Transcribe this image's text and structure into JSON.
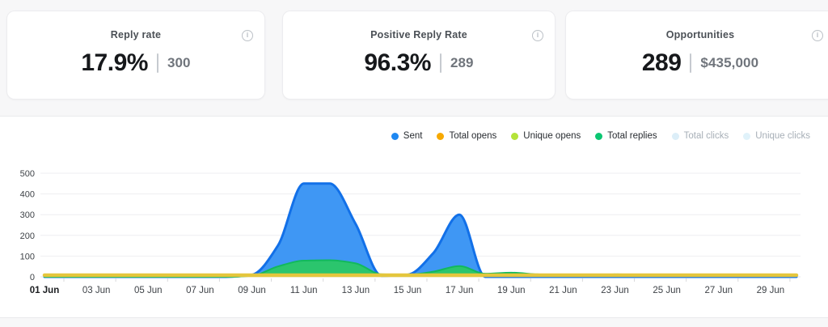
{
  "cards": [
    {
      "title": "Reply rate",
      "value": "17.9%",
      "secondary": "300",
      "info_icon": "info-circle"
    },
    {
      "title": "Positive Reply Rate",
      "value": "96.3%",
      "secondary": "289",
      "info_icon": "info-circle"
    },
    {
      "title": "Opportunities",
      "value": "289",
      "secondary": "$435,000",
      "info_icon": "info-circle"
    }
  ],
  "legend": {
    "position": "top-right",
    "items": [
      {
        "label": "Sent",
        "color": "#1e88f2",
        "active": true
      },
      {
        "label": "Total opens",
        "color": "#f7a900",
        "active": true
      },
      {
        "label": "Unique opens",
        "color": "#b4e339",
        "active": true
      },
      {
        "label": "Total replies",
        "color": "#0bc672",
        "active": true
      },
      {
        "label": "Total clicks",
        "color": "#dceef8",
        "active": false
      },
      {
        "label": "Unique clicks",
        "color": "#e0f2fa",
        "active": false
      }
    ]
  },
  "chart_data": {
    "type": "area",
    "title": "",
    "xlabel": "",
    "ylabel": "",
    "x_unit": "day of June",
    "x": [
      1,
      2,
      3,
      4,
      5,
      6,
      7,
      8,
      9,
      10,
      11,
      12,
      13,
      14,
      15,
      16,
      17,
      18,
      19,
      20,
      21,
      22,
      23,
      24,
      25,
      26,
      27,
      28,
      29,
      30
    ],
    "ylim": [
      0,
      500
    ],
    "yticks": [
      0,
      100,
      200,
      300,
      400,
      500
    ],
    "grid": true,
    "legend_position": "top-right",
    "x_ticks": [
      {
        "day": 1,
        "label": "01 Jun",
        "bold": true
      },
      {
        "day": 3,
        "label": "03 Jun",
        "bold": false
      },
      {
        "day": 5,
        "label": "05 Jun",
        "bold": false
      },
      {
        "day": 7,
        "label": "07 Jun",
        "bold": false
      },
      {
        "day": 9,
        "label": "09 Jun",
        "bold": false
      },
      {
        "day": 11,
        "label": "11 Jun",
        "bold": false
      },
      {
        "day": 13,
        "label": "13 Jun",
        "bold": false
      },
      {
        "day": 15,
        "label": "15 Jun",
        "bold": false
      },
      {
        "day": 17,
        "label": "17 Jun",
        "bold": false
      },
      {
        "day": 19,
        "label": "19 Jun",
        "bold": false
      },
      {
        "day": 21,
        "label": "21 Jun",
        "bold": false
      },
      {
        "day": 23,
        "label": "23 Jun",
        "bold": false
      },
      {
        "day": 25,
        "label": "25 Jun",
        "bold": false
      },
      {
        "day": 27,
        "label": "27 Jun",
        "bold": false
      },
      {
        "day": 29,
        "label": "29 Jun",
        "bold": false
      }
    ],
    "series": [
      {
        "name": "Sent",
        "draw": "area",
        "fill": "#3f97f4",
        "stroke": "#1270e8",
        "stroke_width": 3,
        "values": [
          0,
          0,
          0,
          0,
          0,
          0,
          0,
          0,
          10,
          150,
          450,
          450,
          255,
          5,
          10,
          115,
          300,
          0,
          0,
          0,
          0,
          0,
          0,
          0,
          0,
          0,
          0,
          0,
          0,
          0
        ]
      },
      {
        "name": "Total replies",
        "draw": "area",
        "fill": "#2bc56d",
        "stroke": "#12b95c",
        "stroke_width": 2,
        "values": [
          0,
          0,
          0,
          0,
          0,
          0,
          0,
          0,
          5,
          50,
          78,
          80,
          65,
          12,
          10,
          25,
          52,
          15,
          20,
          12,
          8,
          6,
          12,
          8,
          5,
          4,
          4,
          4,
          4,
          4
        ]
      },
      {
        "name": "Unique opens",
        "draw": "line",
        "stroke": "#b4e339",
        "stroke_width": 2,
        "values": [
          6,
          6,
          6,
          6,
          6,
          6,
          6,
          6,
          6,
          6,
          6,
          6,
          6,
          6,
          6,
          6,
          6,
          6,
          6,
          6,
          6,
          6,
          6,
          6,
          6,
          6,
          6,
          6,
          6,
          6
        ]
      },
      {
        "name": "Total opens",
        "draw": "line",
        "stroke": "#e4c63d",
        "stroke_width": 4.5,
        "values": [
          8,
          8,
          8,
          8,
          8,
          8,
          8,
          8,
          8,
          8,
          8,
          8,
          8,
          8,
          8,
          8,
          8,
          8,
          8,
          8,
          8,
          8,
          8,
          8,
          8,
          8,
          8,
          8,
          8,
          8
        ]
      },
      {
        "name": "Total clicks",
        "draw": "hidden",
        "visible": false
      },
      {
        "name": "Unique clicks",
        "draw": "hidden",
        "visible": false
      }
    ]
  }
}
